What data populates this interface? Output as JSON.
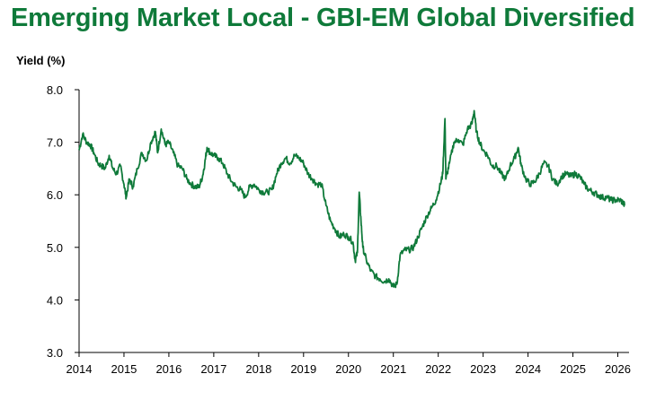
{
  "title": "Emerging Market Local - GBI-EM Global Diversified",
  "chart_data": {
    "type": "line",
    "title": "Emerging Market Local - GBI-EM Global Diversified",
    "xlabel": "",
    "ylabel": "Yield (%)",
    "ylim": [
      3.0,
      8.0
    ],
    "xlim": [
      2014,
      2026.25
    ],
    "y_ticks": [
      "3.0",
      "4.0",
      "5.0",
      "6.0",
      "7.0",
      "8.0"
    ],
    "x_ticks": [
      "2014",
      "2015",
      "2016",
      "2017",
      "2018",
      "2019",
      "2020",
      "2021",
      "2022",
      "2023",
      "2024",
      "2025",
      "2026"
    ],
    "grid": false,
    "legend": "none",
    "line_color": "#0f7a3a",
    "series": [
      {
        "values": [
          [
            2014.0,
            6.85
          ],
          [
            2014.08,
            7.15
          ],
          [
            2014.17,
            7.0
          ],
          [
            2014.25,
            6.95
          ],
          [
            2014.33,
            6.8
          ],
          [
            2014.42,
            6.6
          ],
          [
            2014.5,
            6.55
          ],
          [
            2014.58,
            6.5
          ],
          [
            2014.67,
            6.75
          ],
          [
            2014.75,
            6.5
          ],
          [
            2014.83,
            6.4
          ],
          [
            2014.92,
            6.55
          ],
          [
            2015.0,
            6.2
          ],
          [
            2015.05,
            5.95
          ],
          [
            2015.12,
            6.3
          ],
          [
            2015.2,
            6.15
          ],
          [
            2015.3,
            6.5
          ],
          [
            2015.4,
            6.8
          ],
          [
            2015.5,
            6.65
          ],
          [
            2015.6,
            7.0
          ],
          [
            2015.7,
            7.2
          ],
          [
            2015.75,
            6.8
          ],
          [
            2015.83,
            7.25
          ],
          [
            2015.92,
            6.95
          ],
          [
            2016.0,
            7.0
          ],
          [
            2016.1,
            6.8
          ],
          [
            2016.2,
            6.55
          ],
          [
            2016.3,
            6.5
          ],
          [
            2016.4,
            6.3
          ],
          [
            2016.5,
            6.2
          ],
          [
            2016.6,
            6.15
          ],
          [
            2016.67,
            6.15
          ],
          [
            2016.75,
            6.35
          ],
          [
            2016.8,
            6.6
          ],
          [
            2016.85,
            6.9
          ],
          [
            2016.92,
            6.8
          ],
          [
            2017.0,
            6.75
          ],
          [
            2017.1,
            6.7
          ],
          [
            2017.2,
            6.6
          ],
          [
            2017.3,
            6.4
          ],
          [
            2017.4,
            6.25
          ],
          [
            2017.5,
            6.15
          ],
          [
            2017.6,
            6.1
          ],
          [
            2017.7,
            5.95
          ],
          [
            2017.8,
            6.15
          ],
          [
            2017.9,
            6.2
          ],
          [
            2018.0,
            6.1
          ],
          [
            2018.1,
            6.05
          ],
          [
            2018.2,
            6.05
          ],
          [
            2018.3,
            6.1
          ],
          [
            2018.4,
            6.4
          ],
          [
            2018.5,
            6.6
          ],
          [
            2018.6,
            6.7
          ],
          [
            2018.7,
            6.6
          ],
          [
            2018.8,
            6.75
          ],
          [
            2018.9,
            6.7
          ],
          [
            2019.0,
            6.6
          ],
          [
            2019.1,
            6.4
          ],
          [
            2019.2,
            6.3
          ],
          [
            2019.3,
            6.2
          ],
          [
            2019.4,
            6.2
          ],
          [
            2019.5,
            5.8
          ],
          [
            2019.6,
            5.5
          ],
          [
            2019.7,
            5.35
          ],
          [
            2019.8,
            5.2
          ],
          [
            2019.9,
            5.25
          ],
          [
            2020.0,
            5.2
          ],
          [
            2020.1,
            5.1
          ],
          [
            2020.15,
            4.75
          ],
          [
            2020.2,
            4.9
          ],
          [
            2020.24,
            6.05
          ],
          [
            2020.28,
            5.5
          ],
          [
            2020.32,
            5.0
          ],
          [
            2020.4,
            4.75
          ],
          [
            2020.5,
            4.55
          ],
          [
            2020.6,
            4.45
          ],
          [
            2020.7,
            4.4
          ],
          [
            2020.8,
            4.35
          ],
          [
            2020.9,
            4.4
          ],
          [
            2021.0,
            4.25
          ],
          [
            2021.08,
            4.3
          ],
          [
            2021.15,
            4.85
          ],
          [
            2021.25,
            4.95
          ],
          [
            2021.35,
            4.95
          ],
          [
            2021.45,
            5.0
          ],
          [
            2021.55,
            5.2
          ],
          [
            2021.65,
            5.4
          ],
          [
            2021.75,
            5.6
          ],
          [
            2021.85,
            5.75
          ],
          [
            2021.95,
            5.9
          ],
          [
            2022.05,
            6.2
          ],
          [
            2022.1,
            6.4
          ],
          [
            2022.15,
            7.45
          ],
          [
            2022.17,
            6.3
          ],
          [
            2022.25,
            6.6
          ],
          [
            2022.35,
            7.0
          ],
          [
            2022.45,
            7.05
          ],
          [
            2022.55,
            6.95
          ],
          [
            2022.65,
            7.25
          ],
          [
            2022.75,
            7.35
          ],
          [
            2022.8,
            7.6
          ],
          [
            2022.85,
            7.2
          ],
          [
            2022.92,
            7.0
          ],
          [
            2023.0,
            6.85
          ],
          [
            2023.1,
            6.75
          ],
          [
            2023.2,
            6.55
          ],
          [
            2023.3,
            6.55
          ],
          [
            2023.4,
            6.4
          ],
          [
            2023.5,
            6.3
          ],
          [
            2023.6,
            6.55
          ],
          [
            2023.7,
            6.7
          ],
          [
            2023.78,
            6.9
          ],
          [
            2023.85,
            6.55
          ],
          [
            2023.95,
            6.3
          ],
          [
            2024.05,
            6.2
          ],
          [
            2024.15,
            6.25
          ],
          [
            2024.25,
            6.4
          ],
          [
            2024.35,
            6.6
          ],
          [
            2024.45,
            6.55
          ],
          [
            2024.55,
            6.3
          ],
          [
            2024.65,
            6.2
          ],
          [
            2024.75,
            6.35
          ],
          [
            2024.85,
            6.4
          ],
          [
            2024.95,
            6.35
          ],
          [
            2025.05,
            6.4
          ],
          [
            2025.15,
            6.35
          ],
          [
            2025.25,
            6.2
          ],
          [
            2025.35,
            6.1
          ],
          [
            2025.45,
            6.05
          ],
          [
            2025.55,
            6.0
          ],
          [
            2025.65,
            5.95
          ],
          [
            2025.75,
            5.95
          ],
          [
            2025.85,
            5.9
          ],
          [
            2025.95,
            5.9
          ],
          [
            2026.05,
            5.9
          ],
          [
            2026.12,
            5.85
          ],
          [
            2026.15,
            5.8
          ]
        ]
      }
    ]
  }
}
